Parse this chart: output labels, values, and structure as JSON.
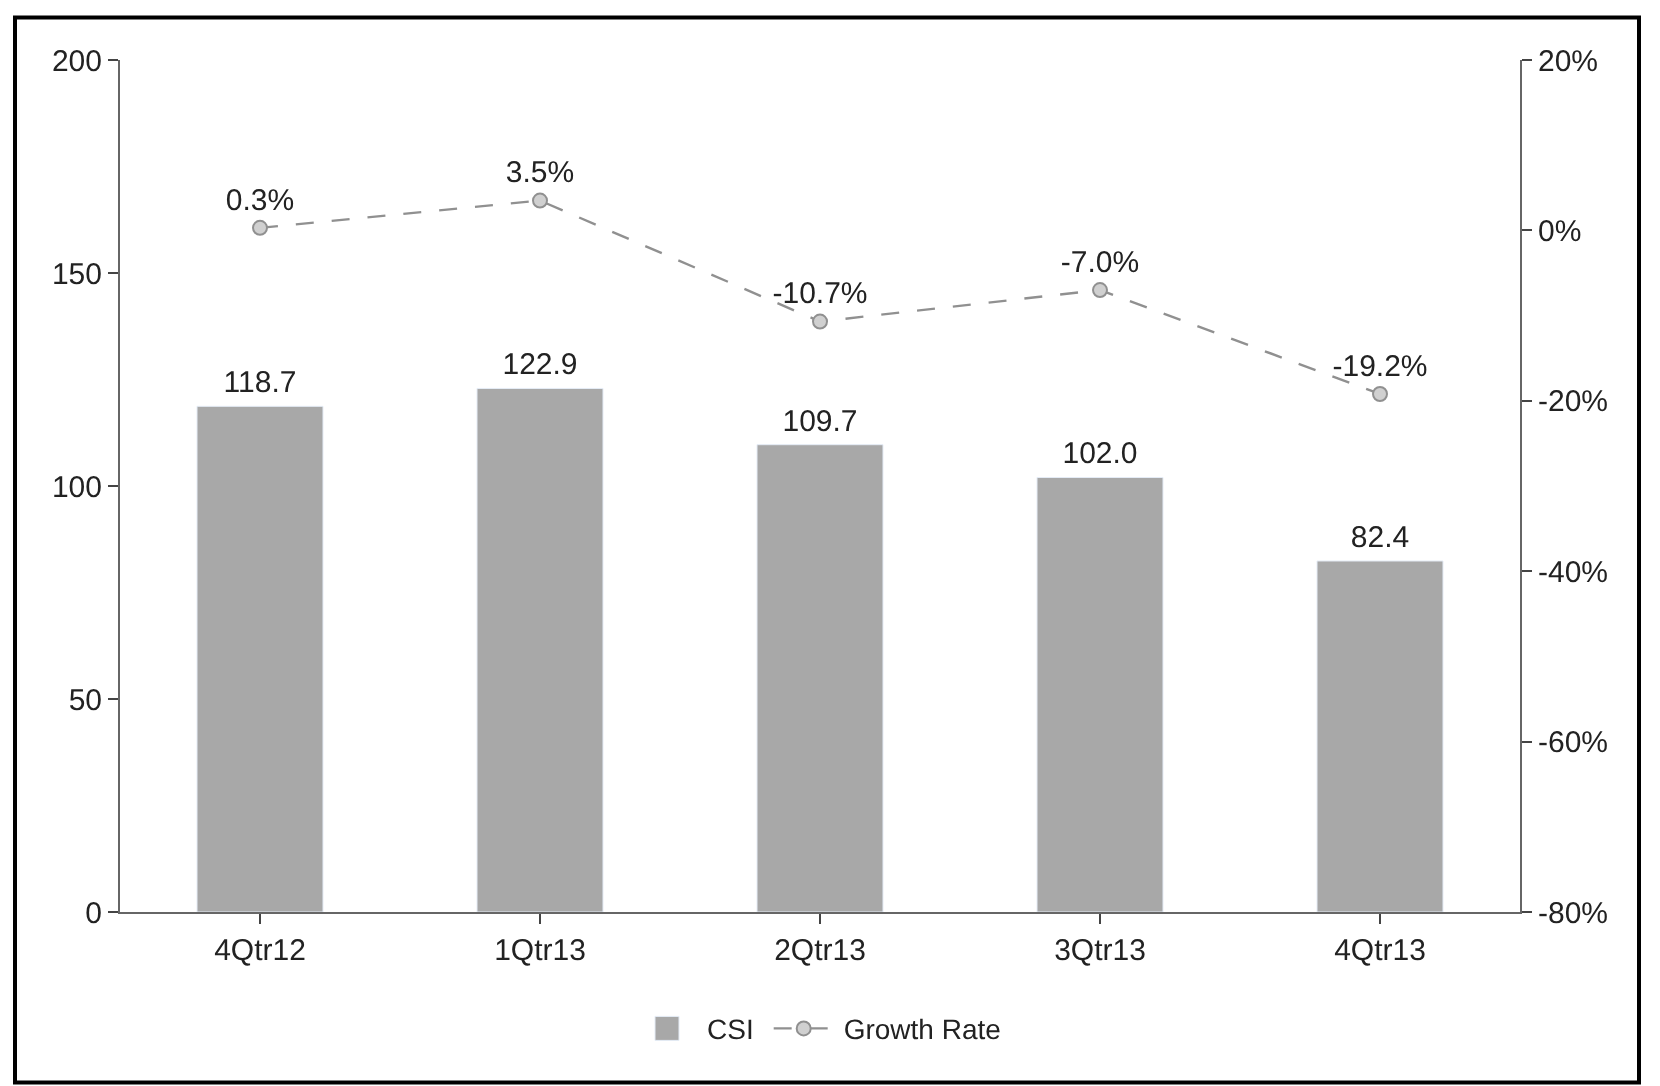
{
  "chart_data": {
    "type": "bar",
    "categories": [
      "4Qtr12",
      "1Qtr13",
      "2Qtr13",
      "3Qtr13",
      "4Qtr13"
    ],
    "series": [
      {
        "name": "CSI",
        "color": "#a8a8a8",
        "values": [
          118.7,
          122.9,
          109.7,
          102.0,
          82.4
        ],
        "value_labels": [
          "118.7",
          "122.9",
          "109.7",
          "102.0",
          "82.4"
        ]
      },
      {
        "name": "Growth Rate",
        "type": "line",
        "axis": "y2",
        "color": "#909090",
        "values": [
          0.3,
          3.5,
          -10.7,
          -7.0,
          -19.2
        ],
        "value_labels": [
          "0.3%",
          "3.5%",
          "-10.7%",
          "-7.0%",
          "-19.2%"
        ]
      }
    ],
    "ylim": [
      0,
      200
    ],
    "yticks": [
      0,
      50,
      100,
      150,
      200
    ],
    "y2lim": [
      -80,
      20
    ],
    "y2ticks": [
      {
        "value": -80,
        "label": "-80%"
      },
      {
        "value": -60,
        "label": "-60%"
      },
      {
        "value": -40,
        "label": "-40%"
      },
      {
        "value": -20,
        "label": "-20%"
      },
      {
        "value": 0,
        "label": "0%"
      },
      {
        "value": 20,
        "label": "20%"
      }
    ],
    "marker": "circle",
    "line_style": "dashed",
    "legend": "bottom"
  }
}
